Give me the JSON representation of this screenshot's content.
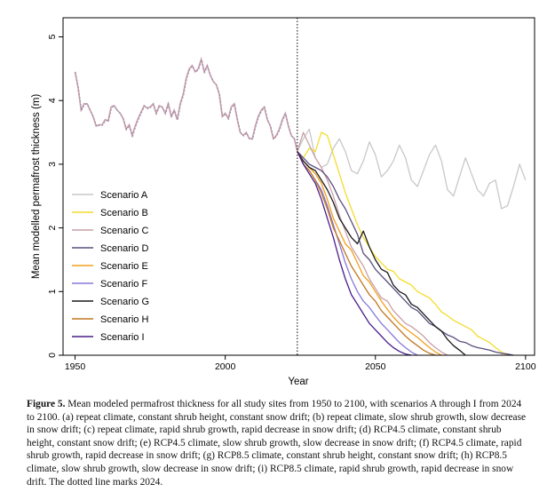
{
  "chart_data": {
    "type": "line",
    "xlabel": "Year",
    "ylabel": "Mean modelled permafrost thickness (m)",
    "xlim": [
      1946,
      2103
    ],
    "ylim": [
      0,
      5.3
    ],
    "xticks": [
      1950,
      2000,
      2050,
      2100
    ],
    "yticks": [
      0,
      1,
      2,
      3,
      4,
      5
    ],
    "grid": false,
    "legend_position": "left-middle",
    "vline": {
      "x": 2024,
      "style": "dotted"
    },
    "history": {
      "x": [
        1950,
        1951,
        1952,
        1953,
        1954,
        1955,
        1956,
        1957,
        1958,
        1959,
        1960,
        1961,
        1962,
        1963,
        1964,
        1965,
        1966,
        1967,
        1968,
        1969,
        1970,
        1971,
        1972,
        1973,
        1974,
        1975,
        1976,
        1977,
        1978,
        1979,
        1980,
        1981,
        1982,
        1983,
        1984,
        1985,
        1986,
        1987,
        1988,
        1989,
        1990,
        1991,
        1992,
        1993,
        1994,
        1995,
        1996,
        1997,
        1998,
        1999,
        2000,
        2001,
        2002,
        2003,
        2004,
        2005,
        2006,
        2007,
        2008,
        2009,
        2010,
        2011,
        2012,
        2013,
        2014,
        2015,
        2016,
        2017,
        2018,
        2019,
        2020,
        2021,
        2022,
        2023,
        2024
      ],
      "y": [
        4.45,
        4.2,
        3.85,
        3.95,
        3.95,
        3.85,
        3.75,
        3.6,
        3.62,
        3.62,
        3.7,
        3.68,
        3.9,
        3.92,
        3.85,
        3.8,
        3.72,
        3.55,
        3.62,
        3.45,
        3.6,
        3.72,
        3.82,
        3.92,
        3.88,
        3.9,
        3.95,
        3.8,
        3.92,
        3.9,
        3.8,
        3.95,
        3.75,
        3.85,
        3.7,
        3.95,
        4.1,
        4.35,
        4.5,
        4.55,
        4.45,
        4.5,
        4.65,
        4.45,
        4.55,
        4.4,
        4.3,
        4.25,
        4.1,
        3.75,
        3.8,
        3.72,
        3.9,
        3.95,
        3.7,
        3.5,
        3.45,
        3.5,
        3.4,
        3.4,
        3.6,
        3.75,
        3.85,
        3.9,
        3.7,
        3.6,
        3.4,
        3.45,
        3.55,
        3.7,
        3.8,
        3.6,
        3.45,
        3.4,
        3.2
      ],
      "colors": [
        "#c9a0a8",
        "#9a8cb4"
      ]
    },
    "series": [
      {
        "name": "Scenario A",
        "color": "#c8c8c8",
        "x": [
          2024,
          2026,
          2028,
          2030,
          2032,
          2034,
          2036,
          2038,
          2040,
          2042,
          2044,
          2046,
          2048,
          2050,
          2052,
          2054,
          2056,
          2058,
          2060,
          2062,
          2064,
          2066,
          2068,
          2070,
          2072,
          2074,
          2076,
          2078,
          2080,
          2082,
          2084,
          2086,
          2088,
          2090,
          2092,
          2094,
          2096,
          2098,
          2100
        ],
        "y": [
          3.2,
          3.4,
          3.55,
          3.1,
          2.95,
          3.0,
          3.25,
          3.4,
          3.2,
          2.9,
          2.85,
          3.05,
          3.35,
          3.15,
          2.8,
          2.9,
          3.05,
          3.3,
          3.1,
          2.75,
          2.65,
          2.9,
          3.15,
          3.3,
          3.05,
          2.6,
          2.5,
          2.8,
          3.1,
          2.85,
          2.6,
          2.5,
          2.7,
          2.75,
          2.3,
          2.35,
          2.65,
          3.0,
          2.75
        ]
      },
      {
        "name": "Scenario B",
        "color": "#f4dc2c",
        "x": [
          2024,
          2026,
          2028,
          2030,
          2032,
          2034,
          2036,
          2038,
          2040,
          2042,
          2044,
          2046,
          2048,
          2050,
          2052,
          2054,
          2056,
          2058,
          2060,
          2062,
          2064,
          2066,
          2068,
          2070,
          2072,
          2074,
          2076,
          2078,
          2080,
          2082,
          2084,
          2086,
          2088,
          2090,
          2092,
          2094
        ],
        "y": [
          3.2,
          3.1,
          3.25,
          3.2,
          3.5,
          3.45,
          3.15,
          2.85,
          2.55,
          2.3,
          2.05,
          1.85,
          1.7,
          1.55,
          1.45,
          1.35,
          1.32,
          1.2,
          1.15,
          1.1,
          1.0,
          0.95,
          0.9,
          0.8,
          0.68,
          0.62,
          0.55,
          0.5,
          0.45,
          0.4,
          0.3,
          0.25,
          0.2,
          0.12,
          0.05,
          0.0
        ]
      },
      {
        "name": "Scenario C",
        "color": "#c9a0a8",
        "x": [
          2024,
          2026,
          2028,
          2030,
          2032,
          2034,
          2036,
          2038,
          2040,
          2042,
          2044,
          2046,
          2048,
          2050,
          2052,
          2054,
          2056,
          2058,
          2060,
          2062,
          2064,
          2066,
          2068,
          2070,
          2072,
          2074
        ],
        "y": [
          3.2,
          3.5,
          3.3,
          3.1,
          2.95,
          2.75,
          2.5,
          2.2,
          1.95,
          1.7,
          1.55,
          1.4,
          1.2,
          1.05,
          0.9,
          0.85,
          0.7,
          0.6,
          0.5,
          0.45,
          0.38,
          0.3,
          0.2,
          0.12,
          0.05,
          0.0
        ]
      },
      {
        "name": "Scenario D",
        "color": "#5a4d7d",
        "x": [
          2024,
          2026,
          2028,
          2030,
          2032,
          2034,
          2036,
          2038,
          2040,
          2042,
          2044,
          2046,
          2048,
          2050,
          2052,
          2054,
          2056,
          2058,
          2060,
          2062,
          2064,
          2066,
          2068,
          2070,
          2072,
          2074,
          2076,
          2078,
          2080,
          2082,
          2084,
          2086,
          2088,
          2090,
          2092,
          2094,
          2096
        ],
        "y": [
          3.2,
          3.1,
          3.0,
          2.95,
          2.9,
          2.8,
          2.65,
          2.45,
          2.3,
          2.1,
          1.9,
          1.6,
          1.5,
          1.35,
          1.25,
          1.15,
          1.05,
          0.95,
          0.85,
          0.75,
          0.7,
          0.6,
          0.5,
          0.45,
          0.38,
          0.32,
          0.28,
          0.22,
          0.2,
          0.15,
          0.12,
          0.1,
          0.08,
          0.05,
          0.03,
          0.02,
          0.0
        ]
      },
      {
        "name": "Scenario E",
        "color": "#f0a01e",
        "x": [
          2024,
          2026,
          2028,
          2030,
          2032,
          2034,
          2036,
          2038,
          2040,
          2042,
          2044,
          2046,
          2048,
          2050,
          2052,
          2054,
          2056,
          2058,
          2060,
          2062,
          2064,
          2066,
          2068,
          2070,
          2072
        ],
        "y": [
          3.2,
          3.05,
          2.95,
          2.85,
          2.7,
          2.45,
          2.15,
          1.95,
          1.75,
          1.65,
          1.45,
          1.25,
          1.15,
          1.0,
          0.85,
          0.72,
          0.6,
          0.5,
          0.42,
          0.35,
          0.28,
          0.2,
          0.12,
          0.05,
          0.0
        ]
      },
      {
        "name": "Scenario F",
        "color": "#8878d8",
        "x": [
          2024,
          2026,
          2028,
          2030,
          2032,
          2034,
          2036,
          2038,
          2040,
          2042,
          2044,
          2046,
          2048,
          2050,
          2052,
          2054,
          2056,
          2058,
          2060,
          2062,
          2064
        ],
        "y": [
          3.2,
          3.0,
          2.9,
          2.75,
          2.6,
          2.35,
          2.05,
          1.75,
          1.45,
          1.2,
          1.0,
          0.85,
          0.75,
          0.62,
          0.5,
          0.4,
          0.3,
          0.2,
          0.12,
          0.05,
          0.0
        ]
      },
      {
        "name": "Scenario G",
        "color": "#1a1a1a",
        "x": [
          2024,
          2026,
          2028,
          2030,
          2032,
          2034,
          2036,
          2038,
          2040,
          2042,
          2044,
          2046,
          2048,
          2050,
          2052,
          2054,
          2056,
          2058,
          2060,
          2062,
          2064,
          2066,
          2068,
          2070,
          2072,
          2074,
          2076,
          2078,
          2080
        ],
        "y": [
          3.2,
          3.05,
          2.95,
          2.9,
          2.75,
          2.6,
          2.4,
          2.15,
          2.0,
          1.85,
          1.75,
          1.95,
          1.7,
          1.5,
          1.35,
          1.3,
          1.1,
          1.0,
          0.95,
          0.8,
          0.75,
          0.65,
          0.55,
          0.45,
          0.38,
          0.25,
          0.15,
          0.08,
          0.0
        ]
      },
      {
        "name": "Scenario H",
        "color": "#c07820",
        "x": [
          2024,
          2026,
          2028,
          2030,
          2032,
          2034,
          2036,
          2038,
          2040,
          2042,
          2044,
          2046,
          2048,
          2050,
          2052,
          2054,
          2056,
          2058,
          2060,
          2062,
          2064,
          2066,
          2068,
          2070
        ],
        "y": [
          3.2,
          3.0,
          2.9,
          2.75,
          2.55,
          2.3,
          2.0,
          1.8,
          1.6,
          1.4,
          1.25,
          1.1,
          0.95,
          0.85,
          0.7,
          0.6,
          0.5,
          0.4,
          0.3,
          0.22,
          0.15,
          0.08,
          0.03,
          0.0
        ]
      },
      {
        "name": "Scenario I",
        "color": "#4a1e8c",
        "x": [
          2024,
          2026,
          2028,
          2030,
          2032,
          2034,
          2036,
          2038,
          2040,
          2042,
          2044,
          2046,
          2048,
          2050,
          2052,
          2054,
          2056,
          2058,
          2060,
          2062
        ],
        "y": [
          3.2,
          3.0,
          2.85,
          2.7,
          2.45,
          2.15,
          1.85,
          1.5,
          1.2,
          0.95,
          0.8,
          0.65,
          0.5,
          0.4,
          0.3,
          0.2,
          0.12,
          0.06,
          0.02,
          0.0
        ]
      }
    ]
  },
  "caption": {
    "label": "Figure 5.",
    "text": " Mean modeled permafrost thickness for all study sites from 1950 to 2100, with scenarios A through I from 2024 to 2100. (a) repeat climate, constant shrub height, constant snow drift; (b) repeat climate, slow shrub growth, slow decrease in snow drift; (c) repeat climate, rapid shrub growth, rapid decrease in snow drift; (d) RCP4.5 climate, constant shrub height, constant snow drift; (e) RCP4.5 climate, slow shrub growth, slow decrease in snow drift; (f) RCP4.5 climate, rapid shrub growth, rapid decrease in snow drift; (g) RCP8.5 climate, constant shrub height, constant snow drift; (h) RCP8.5 climate, slow shrub growth, slow decrease in snow drift; (i) RCP8.5 climate, rapid shrub growth, rapid decrease in snow drift. The dotted line marks 2024."
  }
}
